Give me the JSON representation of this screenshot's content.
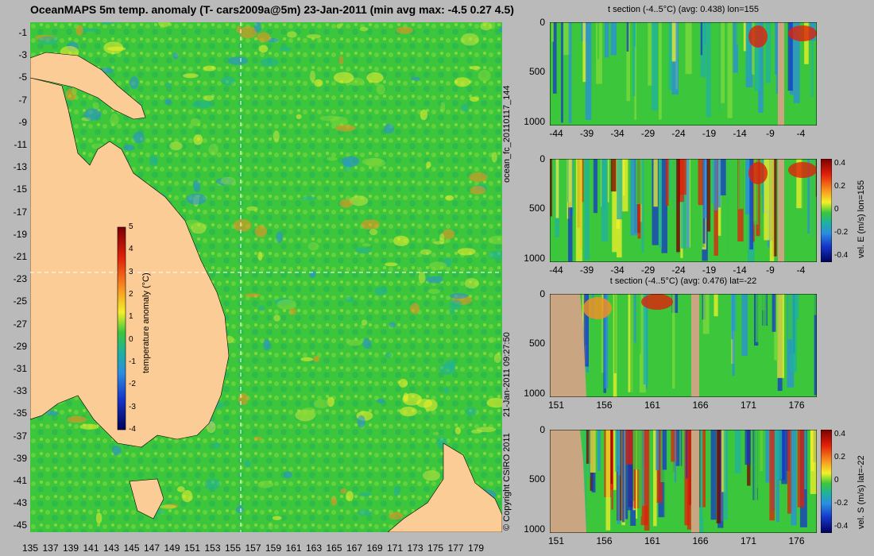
{
  "map": {
    "title": "OceanMAPS 5m temp. anomaly (T- cars2009a@5m) 23-Jan-2011 (min avg max: -4.5 0.27 4.5)",
    "lat_ticks": [
      "-1",
      "-3",
      "-5",
      "-7",
      "-9",
      "-11",
      "-13",
      "-15",
      "-17",
      "-19",
      "-21",
      "-23",
      "-25",
      "-27",
      "-29",
      "-31",
      "-33",
      "-35",
      "-37",
      "-39",
      "-41",
      "-43",
      "-45"
    ],
    "lon_ticks": [
      "135",
      "137",
      "139",
      "141",
      "143",
      "145",
      "147",
      "149",
      "151",
      "153",
      "155",
      "157",
      "159",
      "161",
      "163",
      "165",
      "167",
      "169",
      "171",
      "173",
      "175",
      "177",
      "179"
    ],
    "colorbar": {
      "label": "temperature anomaly (°C)",
      "ticks": [
        "5",
        "4",
        "3",
        "2",
        "1",
        "0",
        "-1",
        "-2",
        "-3",
        "-4"
      ]
    },
    "section_lon": 155,
    "section_lat": -22
  },
  "side": {
    "fc_label": "ocean_fc_20110117_144",
    "run_label": "21-Jan-2011 09:27:50",
    "copyright": "© Copyright CSIRO 2011"
  },
  "panels": [
    {
      "title": "t section (-4..5°C) (avg: 0.438) lon=155",
      "y_ticks": [
        "0",
        "500",
        "1000"
      ],
      "x_ticks": [
        "-44",
        "-39",
        "-34",
        "-29",
        "-24",
        "-19",
        "-14",
        "-9",
        "-4"
      ],
      "colorbar": null
    },
    {
      "title": "",
      "y_ticks": [
        "0",
        "500",
        "1000"
      ],
      "x_ticks": [
        "-44",
        "-39",
        "-34",
        "-29",
        "-24",
        "-19",
        "-14",
        "-9",
        "-4"
      ],
      "colorbar": {
        "label": "vel. E (m/s) lon=155",
        "ticks": [
          "0.4",
          "0.2",
          "0",
          "-0.2",
          "-0.4"
        ]
      }
    },
    {
      "title": "t section (-4..5°C) (avg: 0.476) lat=-22",
      "y_ticks": [
        "0",
        "500",
        "1000"
      ],
      "x_ticks": [
        "151",
        "156",
        "161",
        "166",
        "171",
        "176"
      ],
      "colorbar": null
    },
    {
      "title": "",
      "y_ticks": [
        "0",
        "500",
        "1000"
      ],
      "x_ticks": [
        "151",
        "156",
        "161",
        "166",
        "171",
        "176"
      ],
      "colorbar": {
        "label": "vel. S (m/s) lat=-22",
        "ticks": [
          "0.4",
          "0.2",
          "0",
          "-0.2",
          "-0.4"
        ]
      }
    }
  ],
  "colors": {
    "ocean": "#39c43a",
    "land": "#fccc96",
    "section_land": "#c9a582",
    "background": "#bababa"
  }
}
